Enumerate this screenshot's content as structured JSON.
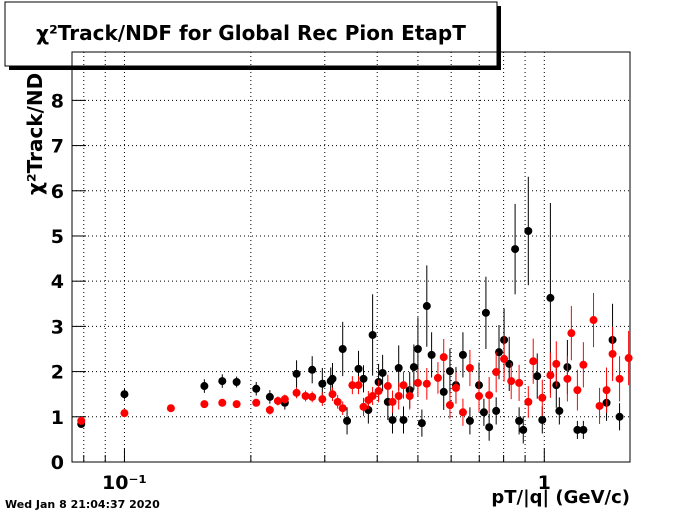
{
  "chart_data": {
    "type": "scatter",
    "title": "χ²Track/NDF for Global Rec Pion EtapT",
    "ylabel": "χ²Track/ND",
    "xlabel": "pT/|q| (GeV/c)",
    "footer": "Wed Jan  8 21:04:37 2020",
    "xlog": true,
    "grid": true,
    "xlim": [
      0.075,
      1.6
    ],
    "ylim": [
      0,
      9.07
    ],
    "xticks": [
      {
        "value": 0.1,
        "label": "10⁻¹"
      },
      1
    ],
    "xminorticks": [
      0.08,
      0.09,
      0.2,
      0.3,
      0.4,
      0.5,
      0.6,
      0.7,
      0.8,
      0.9
    ],
    "yticks": [
      0,
      1,
      2,
      3,
      4,
      5,
      6,
      7,
      8
    ],
    "series": [
      {
        "color": "#000000",
        "x": [
          0.0789,
          0.1,
          0.155,
          0.171,
          0.185,
          0.206,
          0.222,
          0.241,
          0.257,
          0.28,
          0.296,
          0.31,
          0.313,
          0.331,
          0.339,
          0.361,
          0.371,
          0.381,
          0.39,
          0.403,
          0.412,
          0.424,
          0.435,
          0.45,
          0.462,
          0.478,
          0.489,
          0.5,
          0.511,
          0.525,
          0.539,
          0.576,
          0.596,
          0.616,
          0.64,
          0.665,
          0.699,
          0.718,
          0.726,
          0.739,
          0.768,
          0.78,
          0.802,
          0.825,
          0.852,
          0.871,
          0.891,
          0.916,
          0.962,
          0.989,
          1.034,
          1.068,
          1.086,
          1.135,
          1.199,
          1.239,
          1.407,
          1.454,
          1.511
        ],
        "values": [
          0.84,
          1.5,
          1.68,
          1.79,
          1.77,
          1.62,
          1.44,
          1.31,
          1.95,
          2.04,
          1.73,
          1.79,
          1.84,
          2.5,
          0.91,
          2.06,
          1.84,
          1.15,
          2.81,
          1.77,
          1.97,
          1.33,
          0.93,
          2.08,
          0.93,
          1.59,
          2.1,
          2.5,
          0.86,
          3.45,
          2.37,
          1.55,
          2.01,
          1.7,
          2.37,
          0.91,
          1.7,
          1.1,
          3.3,
          0.77,
          1.13,
          2.43,
          2.7,
          2.17,
          4.71,
          0.91,
          0.71,
          5.11,
          1.9,
          0.93,
          3.63,
          1.7,
          1.13,
          2.1,
          0.71,
          0.71,
          1.31,
          2.7,
          1.0
        ],
        "errors": [
          0.08,
          0.12,
          0.15,
          0.15,
          0.12,
          0.15,
          0.15,
          0.15,
          0.3,
          0.3,
          0.35,
          0.3,
          0.35,
          0.6,
          0.3,
          0.4,
          0.3,
          0.3,
          0.9,
          0.4,
          0.4,
          0.4,
          0.3,
          0.5,
          0.3,
          0.4,
          0.5,
          0.7,
          0.3,
          0.9,
          0.5,
          0.4,
          0.5,
          0.4,
          0.5,
          0.3,
          0.5,
          0.3,
          0.8,
          0.3,
          0.3,
          0.6,
          0.7,
          0.6,
          1.0,
          0.3,
          0.3,
          1.2,
          0.5,
          0.3,
          2.1,
          0.5,
          0.3,
          0.6,
          0.2,
          0.2,
          0.4,
          0.8,
          0.3
        ]
      },
      {
        "color": "#ff0000",
        "x": [
          0.0789,
          0.1,
          0.129,
          0.155,
          0.171,
          0.185,
          0.206,
          0.222,
          0.232,
          0.241,
          0.257,
          0.27,
          0.28,
          0.296,
          0.313,
          0.322,
          0.331,
          0.349,
          0.361,
          0.371,
          0.381,
          0.39,
          0.403,
          0.424,
          0.435,
          0.45,
          0.462,
          0.478,
          0.5,
          0.525,
          0.558,
          0.576,
          0.596,
          0.616,
          0.64,
          0.665,
          0.699,
          0.739,
          0.768,
          0.802,
          0.834,
          0.871,
          0.916,
          0.941,
          0.989,
          1.034,
          1.068,
          1.135,
          1.16,
          1.199,
          1.239,
          1.31,
          1.354,
          1.407,
          1.454,
          1.511,
          1.588
        ],
        "values": [
          0.91,
          1.08,
          1.19,
          1.28,
          1.31,
          1.28,
          1.31,
          1.15,
          1.35,
          1.39,
          1.53,
          1.46,
          1.44,
          1.39,
          1.5,
          1.33,
          1.19,
          1.7,
          1.7,
          1.22,
          1.37,
          1.46,
          1.57,
          1.68,
          1.33,
          1.46,
          1.7,
          1.46,
          1.75,
          1.73,
          1.86,
          2.32,
          1.26,
          1.64,
          1.1,
          2.08,
          1.46,
          1.48,
          1.99,
          2.28,
          1.79,
          1.75,
          1.33,
          2.23,
          1.42,
          1.92,
          2.17,
          1.84,
          2.85,
          1.59,
          2.15,
          3.14,
          1.24,
          1.59,
          2.39,
          1.84,
          2.3
        ],
        "errors": [
          0.08,
          0.05,
          0.06,
          0.06,
          0.07,
          0.07,
          0.08,
          0.1,
          0.1,
          0.1,
          0.12,
          0.12,
          0.12,
          0.15,
          0.15,
          0.15,
          0.15,
          0.2,
          0.2,
          0.2,
          0.2,
          0.2,
          0.25,
          0.25,
          0.25,
          0.3,
          0.3,
          0.3,
          0.3,
          0.35,
          0.35,
          0.4,
          0.3,
          0.35,
          0.3,
          0.4,
          0.35,
          0.4,
          0.45,
          0.5,
          0.4,
          0.4,
          0.35,
          0.5,
          0.4,
          0.5,
          0.5,
          0.5,
          0.6,
          0.45,
          0.5,
          0.6,
          0.4,
          0.5,
          0.6,
          0.5,
          0.6
        ]
      }
    ]
  }
}
